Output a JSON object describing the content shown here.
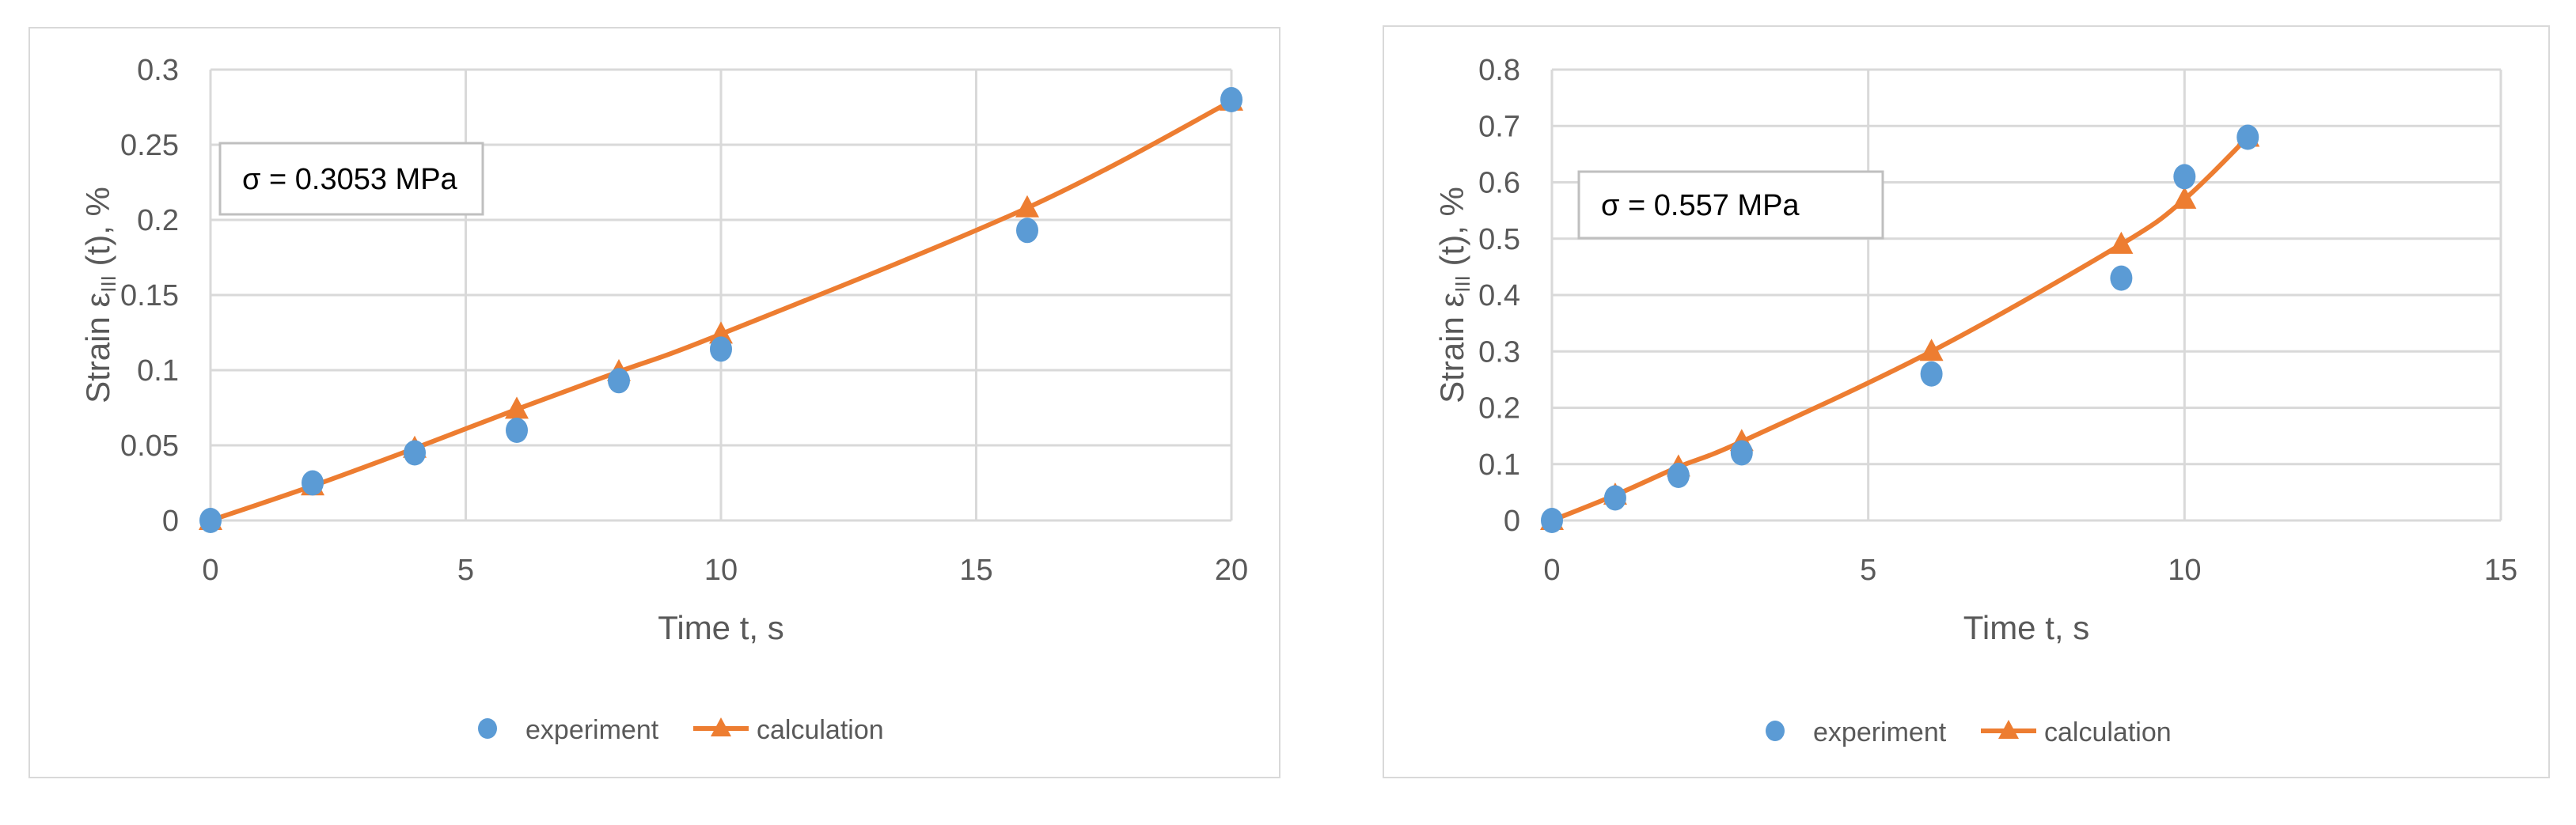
{
  "chart_data": [
    {
      "type": "scatter",
      "annotation": "σ = 0.3053 MPa",
      "xlabel": "Time t, s",
      "ylabel_main": "Strain ε",
      "ylabel_sub": "III",
      "ylabel_tail": " (t), %",
      "xlim": [
        0,
        20
      ],
      "ylim": [
        0,
        0.3
      ],
      "x_ticks": [
        0,
        5,
        10,
        15,
        20
      ],
      "y_ticks": [
        0,
        0.05,
        0.1,
        0.15,
        0.2,
        0.25,
        0.3
      ],
      "grid": true,
      "legend_position": "bottom",
      "series": [
        {
          "name": "experiment",
          "style": "markers",
          "color": "#5b9bd5",
          "x": [
            0,
            2,
            4,
            6,
            8,
            10,
            16,
            20
          ],
          "y": [
            0,
            0.025,
            0.045,
            0.06,
            0.093,
            0.114,
            0.193,
            0.28
          ]
        },
        {
          "name": "calculation",
          "style": "line-markers",
          "color": "#ed7d31",
          "x": [
            0,
            2,
            4,
            6,
            8,
            10,
            16,
            20
          ],
          "y": [
            0,
            0.023,
            0.048,
            0.074,
            0.099,
            0.124,
            0.208,
            0.279
          ]
        }
      ]
    },
    {
      "type": "scatter",
      "annotation": "σ = 0.557 MPa",
      "xlabel": "Time t, s",
      "ylabel_main": "Strain ε",
      "ylabel_sub": "III",
      "ylabel_tail": " (t), %",
      "xlim": [
        0,
        15
      ],
      "ylim": [
        0,
        0.8
      ],
      "x_ticks": [
        0,
        5,
        10,
        15
      ],
      "y_ticks": [
        0,
        0.1,
        0.2,
        0.3,
        0.4,
        0.5,
        0.6,
        0.7,
        0.8
      ],
      "grid": true,
      "legend_position": "bottom",
      "series": [
        {
          "name": "experiment",
          "style": "markers",
          "color": "#5b9bd5",
          "x": [
            0,
            1,
            2,
            3,
            6,
            9,
            10,
            11
          ],
          "y": [
            0,
            0.04,
            0.08,
            0.12,
            0.26,
            0.43,
            0.61,
            0.68
          ]
        },
        {
          "name": "calculation",
          "style": "line-markers",
          "color": "#ed7d31",
          "x": [
            0,
            1,
            2,
            3,
            6,
            9,
            10,
            11
          ],
          "y": [
            0,
            0.045,
            0.095,
            0.14,
            0.3,
            0.49,
            0.57,
            0.68
          ]
        }
      ]
    }
  ]
}
